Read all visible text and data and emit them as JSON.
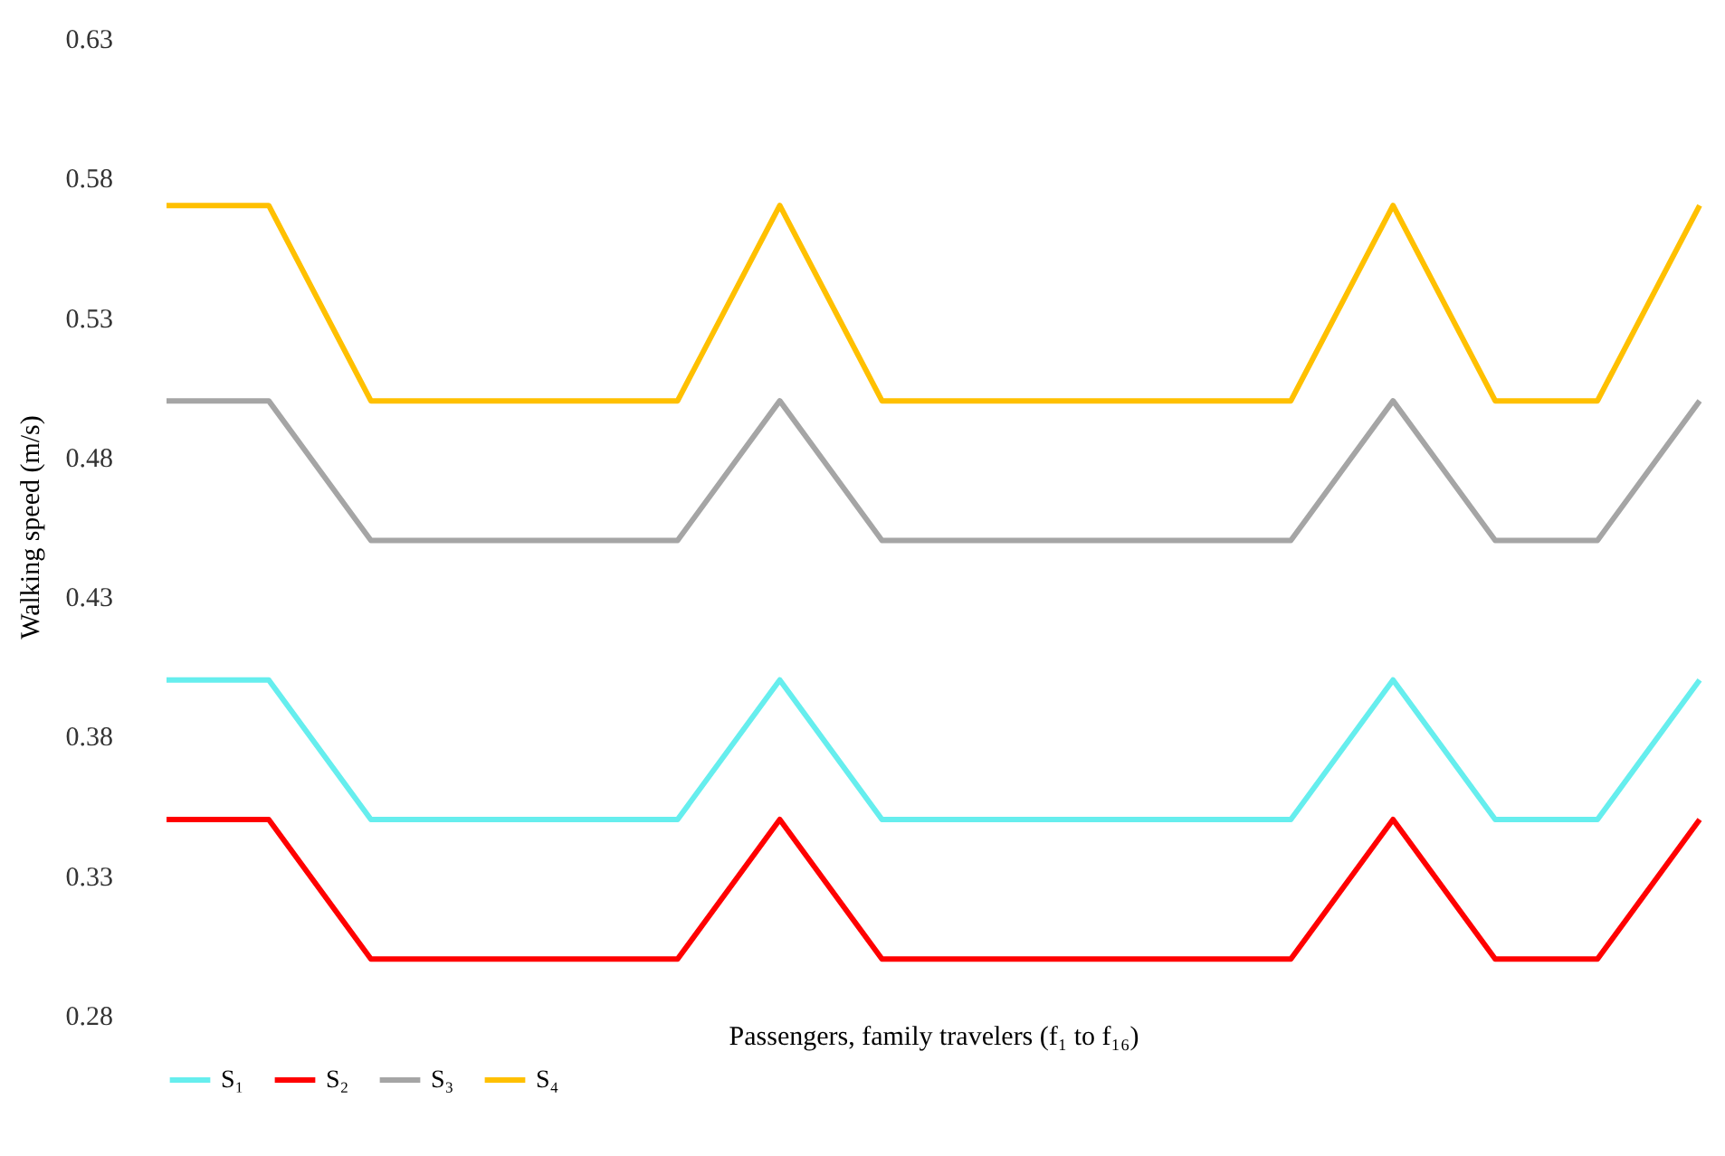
{
  "chart_data": {
    "type": "line",
    "xlabel": "Passengers, family travelers (f₁ to f₁₆)",
    "ylabel": "Walking speed (m/s)",
    "categories": [
      null,
      null,
      null,
      null,
      null,
      null,
      null,
      null,
      null,
      null,
      null,
      null,
      null,
      null,
      null,
      null
    ],
    "series": [
      {
        "name": "S₁",
        "color": "#66eeee",
        "values": [
          0.4,
          0.4,
          0.35,
          0.35,
          0.35,
          0.35,
          0.4,
          0.35,
          0.35,
          0.35,
          0.35,
          0.35,
          0.4,
          0.35,
          0.35,
          0.4
        ]
      },
      {
        "name": "S₂",
        "color": "#ff0000",
        "values": [
          0.35,
          0.35,
          0.3,
          0.3,
          0.3,
          0.3,
          0.35,
          0.3,
          0.3,
          0.3,
          0.3,
          0.3,
          0.35,
          0.3,
          0.3,
          0.35
        ]
      },
      {
        "name": "S₃",
        "color": "#a5a5a5",
        "values": [
          0.5,
          0.5,
          0.45,
          0.45,
          0.45,
          0.45,
          0.5,
          0.45,
          0.45,
          0.45,
          0.45,
          0.45,
          0.5,
          0.45,
          0.45,
          0.5
        ]
      },
      {
        "name": "S₄",
        "color": "#ffc000",
        "values": [
          0.57,
          0.57,
          0.5,
          0.5,
          0.5,
          0.5,
          0.57,
          0.5,
          0.5,
          0.5,
          0.5,
          0.5,
          0.57,
          0.5,
          0.5,
          0.57
        ]
      }
    ],
    "ylim": [
      0.28,
      0.63
    ],
    "yticks": [
      0.28,
      0.33,
      0.38,
      0.43,
      0.48,
      0.53,
      0.58,
      0.63
    ],
    "grid": false,
    "legend": "bottom",
    "marker": "none",
    "line_style": "solid",
    "tick_labels": "y"
  }
}
